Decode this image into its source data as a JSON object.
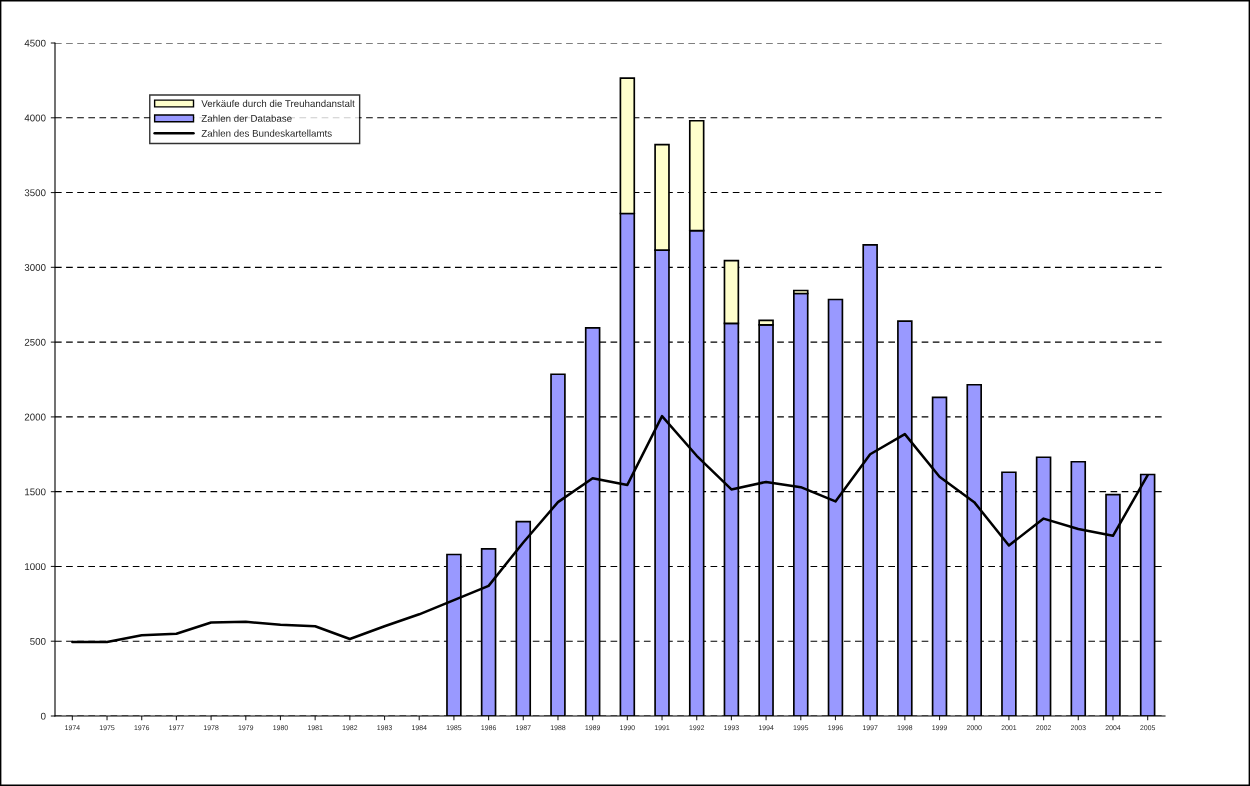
{
  "chart_data": {
    "type": "bar",
    "stacked": true,
    "categories": [
      "1974",
      "1975",
      "1976",
      "1977",
      "1978",
      "1979",
      "1980",
      "1981",
      "1982",
      "1983",
      "1984",
      "1985",
      "1986",
      "1987",
      "1988",
      "1989",
      "1990",
      "1991",
      "1992",
      "1993",
      "1994",
      "1995",
      "1996",
      "1997",
      "1998",
      "1999",
      "2000",
      "2001",
      "2002",
      "2003",
      "2004",
      "2005"
    ],
    "series": [
      {
        "name": "Zahlen der Database",
        "color": "#9999ff",
        "values": [
          null,
          null,
          null,
          null,
          null,
          null,
          null,
          null,
          null,
          null,
          null,
          1080,
          1118,
          1300,
          2285,
          2595,
          3360,
          3115,
          3245,
          2625,
          2615,
          2825,
          2785,
          3150,
          2640,
          2130,
          2215,
          1630,
          1730,
          1700,
          1480,
          1615
        ]
      },
      {
        "name": "Verkäufe durch die Treuhandanstalt",
        "color": "#ffffcc",
        "values": [
          null,
          null,
          null,
          null,
          null,
          null,
          null,
          null,
          null,
          null,
          null,
          null,
          null,
          null,
          null,
          null,
          905,
          705,
          735,
          420,
          30,
          20,
          null,
          null,
          null,
          null,
          null,
          null,
          null,
          null,
          null,
          null
        ]
      },
      {
        "name": "Zahlen des Bundeskartellamts",
        "type": "line",
        "color": "#000000",
        "values": [
          495,
          495,
          540,
          550,
          625,
          630,
          610,
          600,
          515,
          600,
          680,
          775,
          870,
          1160,
          1430,
          1590,
          1545,
          2005,
          1740,
          1515,
          1565,
          1530,
          1435,
          1750,
          1885,
          1600,
          1430,
          1140,
          1320,
          1250,
          1205,
          1610
        ]
      }
    ],
    "ylim": [
      0,
      4500
    ],
    "yticks": [
      0,
      500,
      1000,
      1500,
      2000,
      2500,
      3000,
      3500,
      4000,
      4500
    ],
    "grid": "y",
    "legend": "top left"
  }
}
